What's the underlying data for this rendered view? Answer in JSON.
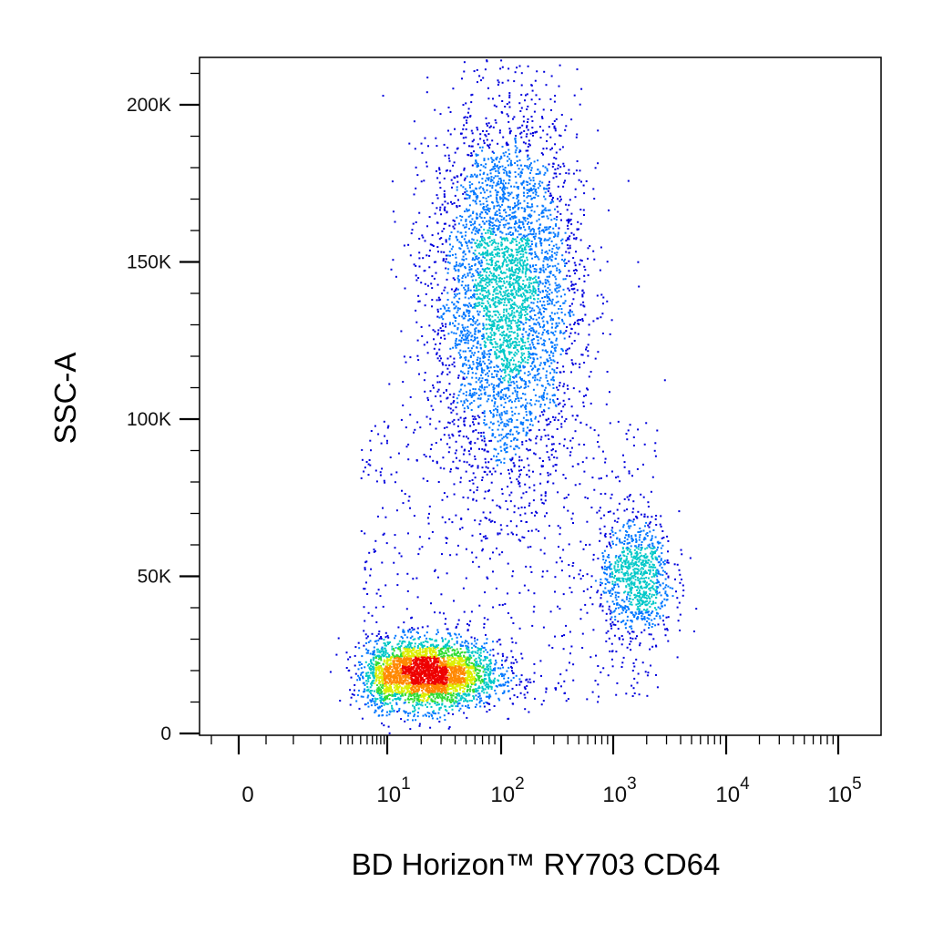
{
  "chart_data": {
    "type": "scatter",
    "title": "",
    "xlabel": "BD Horizon™ RY703 CD64",
    "ylabel": "SSC-A",
    "x_scale": "biexponential",
    "xlim": [
      -100,
      100000
    ],
    "ylim": [
      -2000,
      212000
    ],
    "grid": false,
    "legend": "none",
    "density_coloring": true,
    "y_ticks": [
      {
        "value": 0,
        "label": "0"
      },
      {
        "value": 50000,
        "label": "50K"
      },
      {
        "value": 100000,
        "label": "100K"
      },
      {
        "value": 150000,
        "label": "150K"
      },
      {
        "value": 200000,
        "label": "200K"
      }
    ],
    "x_ticks": [
      {
        "value": 0,
        "base": "0",
        "exp": ""
      },
      {
        "value": 10,
        "base": "10",
        "exp": "1"
      },
      {
        "value": 100,
        "base": "10",
        "exp": "2"
      },
      {
        "value": 1000,
        "base": "10",
        "exp": "3"
      },
      {
        "value": 10000,
        "base": "10",
        "exp": "4"
      },
      {
        "value": 100000,
        "base": "10",
        "exp": "5"
      }
    ],
    "populations": [
      {
        "x_center": 22,
        "y_center": 19000,
        "log_spread_x": 0.32,
        "y_spread": 5500,
        "events": 3200
      },
      {
        "x_center": 110,
        "y_center": 140000,
        "log_spread_x": 0.33,
        "y_spread": 30000,
        "events": 4200
      },
      {
        "x_center": 1600,
        "y_center": 50000,
        "log_spread_x": 0.16,
        "y_spread": 10000,
        "events": 900
      }
    ],
    "density_colors": [
      "#0000dd",
      "#0077ff",
      "#00c8c8",
      "#33dd33",
      "#ddee00",
      "#ff8800",
      "#ee0000"
    ]
  }
}
